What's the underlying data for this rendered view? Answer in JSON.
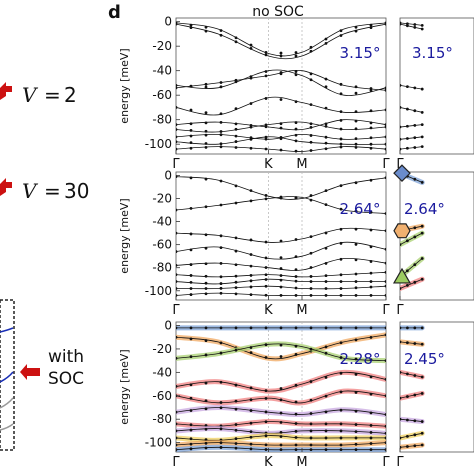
{
  "figure": {
    "panel_letter": "d",
    "column_title": "no SOC",
    "left_column": {
      "potentials": [
        {
          "symbol": "V",
          "op": "=",
          "value": "2"
        },
        {
          "symbol": "V",
          "op": "=",
          "value": "30"
        }
      ],
      "with_soc_label": [
        "with",
        "SOC"
      ],
      "colors": {
        "arrow": "#cc1111",
        "line_blue": "#1a2fb5",
        "line_gray": "#999999"
      }
    },
    "colors": {
      "angle_text": "#1a1a9e",
      "bands": "#111111",
      "blue_band": "#7ea3d8",
      "orange_band": "#f0a860",
      "green_band": "#a8d070",
      "red_band": "#f08080",
      "purple_band": "#c8a8e0",
      "yellow_band": "#f0d060",
      "diamond_marker": "#6a8ccc",
      "hexagon_marker": "#f0b070",
      "triangle_marker": "#9ccc60"
    }
  },
  "chart_data": [
    {
      "type": "line",
      "angle_label": "3.15°",
      "ylabel": "energy  [meV]",
      "x_ticks": [
        "Γ",
        "K",
        "M",
        "Γ"
      ],
      "y_ticks": [
        0,
        -20,
        -40,
        -60,
        -80,
        -100
      ],
      "ylim": [
        -108,
        3
      ],
      "path_positions": [
        0,
        0.44,
        0.6,
        1.0
      ],
      "series_note": "unlabeled moire bands",
      "bands": [
        {
          "x": [
            0,
            0.2,
            0.44,
            0.6,
            0.8,
            1
          ],
          "y": [
            -1,
            -6,
            -26,
            -25,
            -6,
            -1
          ]
        },
        {
          "x": [
            0,
            0.2,
            0.44,
            0.6,
            0.8,
            1
          ],
          "y": [
            -2,
            -10,
            -28,
            -28,
            -10,
            -2
          ]
        },
        {
          "x": [
            0,
            0.2,
            0.44,
            0.6,
            0.8,
            1
          ],
          "y": [
            -52,
            -54,
            -40,
            -44,
            -60,
            -54
          ]
        },
        {
          "x": [
            0,
            0.2,
            0.44,
            0.6,
            0.8,
            1
          ],
          "y": [
            -54,
            -50,
            -44,
            -40,
            -52,
            -56
          ]
        },
        {
          "x": [
            0,
            0.2,
            0.44,
            0.6,
            0.8,
            1
          ],
          "y": [
            -70,
            -76,
            -62,
            -66,
            -74,
            -72
          ]
        },
        {
          "x": [
            0,
            0.2,
            0.44,
            0.6,
            0.8,
            1
          ],
          "y": [
            -84,
            -82,
            -86,
            -88,
            -80,
            -84
          ]
        },
        {
          "x": [
            0,
            0.2,
            0.44,
            0.6,
            0.8,
            1
          ],
          "y": [
            -88,
            -90,
            -84,
            -82,
            -88,
            -86
          ]
        },
        {
          "x": [
            0,
            0.2,
            0.44,
            0.6,
            0.8,
            1
          ],
          "y": [
            -94,
            -92,
            -96,
            -92,
            -96,
            -94
          ]
        },
        {
          "x": [
            0,
            0.2,
            0.44,
            0.6,
            0.8,
            1
          ],
          "y": [
            -98,
            -100,
            -94,
            -98,
            -100,
            -100
          ]
        },
        {
          "x": [
            0,
            0.2,
            0.44,
            0.6,
            0.8,
            1
          ],
          "y": [
            -104,
            -102,
            -104,
            -106,
            -102,
            -104
          ]
        }
      ]
    },
    {
      "type": "line",
      "angle_label": "2.64°",
      "ylabel": "energy  [meV]",
      "x_ticks": [
        "Γ",
        "K",
        "M",
        "Γ"
      ],
      "y_ticks": [
        0,
        -20,
        -40,
        -60,
        -80,
        -100
      ],
      "ylim": [
        -108,
        3
      ],
      "path_positions": [
        0,
        0.44,
        0.6,
        1.0
      ],
      "bands": [
        {
          "x": [
            0,
            0.2,
            0.44,
            0.6,
            0.8,
            1
          ],
          "y": [
            -1,
            -4,
            -18,
            -20,
            -8,
            -2
          ]
        },
        {
          "x": [
            0,
            0.2,
            0.44,
            0.6,
            0.8,
            1
          ],
          "y": [
            -30,
            -26,
            -20,
            -19,
            -30,
            -33
          ]
        },
        {
          "x": [
            0,
            0.2,
            0.44,
            0.6,
            0.8,
            1
          ],
          "y": [
            -50,
            -52,
            -58,
            -55,
            -46,
            -48
          ]
        },
        {
          "x": [
            0,
            0.2,
            0.44,
            0.6,
            0.8,
            1
          ],
          "y": [
            -66,
            -62,
            -72,
            -70,
            -58,
            -64
          ]
        },
        {
          "x": [
            0,
            0.2,
            0.44,
            0.6,
            0.8,
            1
          ],
          "y": [
            -78,
            -76,
            -80,
            -82,
            -72,
            -76
          ]
        },
        {
          "x": [
            0,
            0.2,
            0.44,
            0.6,
            0.8,
            1
          ],
          "y": [
            -86,
            -88,
            -86,
            -88,
            -86,
            -84
          ]
        },
        {
          "x": [
            0,
            0.2,
            0.44,
            0.6,
            0.8,
            1
          ],
          "y": [
            -92,
            -94,
            -90,
            -92,
            -92,
            -92
          ]
        },
        {
          "x": [
            0,
            0.2,
            0.44,
            0.6,
            0.8,
            1
          ],
          "y": [
            -98,
            -98,
            -96,
            -98,
            -98,
            -96
          ]
        },
        {
          "x": [
            0,
            0.2,
            0.44,
            0.6,
            0.8,
            1
          ],
          "y": [
            -104,
            -102,
            -104,
            -104,
            -104,
            -104
          ]
        }
      ]
    },
    {
      "type": "line",
      "angle_label": "2.28°",
      "ylabel": "energy  [meV]",
      "x_ticks": [
        "Γ",
        "K",
        "M",
        "Γ"
      ],
      "y_ticks": [
        0,
        -20,
        -40,
        -60,
        -80,
        -100
      ],
      "ylim": [
        -108,
        3
      ],
      "path_positions": [
        0,
        0.44,
        0.6,
        1.0
      ],
      "bands": [
        {
          "x": [
            0,
            0.2,
            0.44,
            0.6,
            0.8,
            1
          ],
          "y": [
            -2,
            -2,
            -2,
            -2,
            -2,
            -2
          ],
          "color_key": "blue_band"
        },
        {
          "x": [
            0,
            0.2,
            0.44,
            0.6,
            0.8,
            1
          ],
          "y": [
            -10,
            -14,
            -28,
            -24,
            -14,
            -8
          ],
          "color_key": "orange_band"
        },
        {
          "x": [
            0,
            0.2,
            0.44,
            0.6,
            0.8,
            1
          ],
          "y": [
            -28,
            -24,
            -16,
            -18,
            -28,
            -30
          ],
          "color_key": "green_band"
        },
        {
          "x": [
            0,
            0.2,
            0.44,
            0.6,
            0.8,
            1
          ],
          "y": [
            -52,
            -48,
            -56,
            -50,
            -40,
            -46
          ],
          "color_key": "red_band"
        },
        {
          "x": [
            0,
            0.2,
            0.44,
            0.6,
            0.8,
            1
          ],
          "y": [
            -60,
            -66,
            -62,
            -66,
            -56,
            -60
          ],
          "color_key": "red_band"
        },
        {
          "x": [
            0,
            0.2,
            0.44,
            0.6,
            0.8,
            1
          ],
          "y": [
            -74,
            -70,
            -74,
            -76,
            -72,
            -76
          ],
          "color_key": "purple_band"
        },
        {
          "x": [
            0,
            0.2,
            0.44,
            0.6,
            0.8,
            1
          ],
          "y": [
            -84,
            -86,
            -82,
            -84,
            -84,
            -86
          ],
          "color_key": "red_band"
        },
        {
          "x": [
            0,
            0.2,
            0.44,
            0.6,
            0.8,
            1
          ],
          "y": [
            -90,
            -88,
            -92,
            -90,
            -90,
            -92
          ],
          "color_key": "purple_band"
        },
        {
          "x": [
            0,
            0.2,
            0.44,
            0.6,
            0.8,
            1
          ],
          "y": [
            -96,
            -98,
            -94,
            -96,
            -96,
            -96
          ],
          "color_key": "yellow_band"
        },
        {
          "x": [
            0,
            0.2,
            0.44,
            0.6,
            0.8,
            1
          ],
          "y": [
            -102,
            -100,
            -102,
            -102,
            -102,
            -100
          ],
          "color_key": "orange_band"
        },
        {
          "x": [
            0,
            0.2,
            0.44,
            0.6,
            0.8,
            1
          ],
          "y": [
            -106,
            -104,
            -106,
            -106,
            -106,
            -106
          ],
          "color_key": "blue_band"
        }
      ]
    },
    {
      "type": "line",
      "angle_label": "3.15°",
      "partial": true,
      "x_ticks": [
        "Γ"
      ],
      "bands": [
        {
          "x": [
            0,
            0.3
          ],
          "y": [
            -1,
            -3
          ]
        },
        {
          "x": [
            0,
            0.3
          ],
          "y": [
            -2,
            -6
          ]
        },
        {
          "x": [
            0,
            0.3
          ],
          "y": [
            -52,
            -55
          ]
        },
        {
          "x": [
            0,
            0.3
          ],
          "y": [
            -70,
            -74
          ]
        },
        {
          "x": [
            0,
            0.3
          ],
          "y": [
            -86,
            -84
          ]
        },
        {
          "x": [
            0,
            0.3
          ],
          "y": [
            -96,
            -94
          ]
        },
        {
          "x": [
            0,
            0.3
          ],
          "y": [
            -104,
            -102
          ]
        }
      ]
    },
    {
      "type": "line",
      "angle_label": "2.64°",
      "partial": true,
      "x_ticks": [
        "Γ"
      ],
      "markers": [
        {
          "shape": "diamond",
          "energy": 2
        },
        {
          "shape": "hexagon",
          "energy": -48
        },
        {
          "shape": "triangle",
          "energy": -88
        }
      ],
      "bands": [
        {
          "x": [
            0,
            0.3
          ],
          "y": [
            2,
            -6
          ],
          "color_key": "blue_band"
        },
        {
          "x": [
            0,
            0.3
          ],
          "y": [
            -48,
            -44
          ],
          "color_key": "orange_band"
        },
        {
          "x": [
            0,
            0.3
          ],
          "y": [
            -60,
            -50
          ],
          "color_key": "green_band"
        },
        {
          "x": [
            0,
            0.3
          ],
          "y": [
            -88,
            -72
          ],
          "color_key": "green_band"
        },
        {
          "x": [
            0,
            0.3
          ],
          "y": [
            -98,
            -90
          ],
          "color_key": "red_band"
        }
      ]
    },
    {
      "type": "line",
      "angle_label": "2.45°",
      "partial": true,
      "x_ticks": [
        "Γ"
      ],
      "bands": [
        {
          "x": [
            0,
            0.3
          ],
          "y": [
            -2,
            -2
          ],
          "color_key": "blue_band"
        },
        {
          "x": [
            0,
            0.3
          ],
          "y": [
            -14,
            -16
          ],
          "color_key": "orange_band"
        },
        {
          "x": [
            0,
            0.3
          ],
          "y": [
            -40,
            -44
          ],
          "color_key": "red_band"
        },
        {
          "x": [
            0,
            0.3
          ],
          "y": [
            -62,
            -58
          ],
          "color_key": "red_band"
        },
        {
          "x": [
            0,
            0.3
          ],
          "y": [
            -80,
            -82
          ],
          "color_key": "purple_band"
        },
        {
          "x": [
            0,
            0.3
          ],
          "y": [
            -96,
            -92
          ],
          "color_key": "yellow_band"
        },
        {
          "x": [
            0,
            0.3
          ],
          "y": [
            -104,
            -102
          ],
          "color_key": "orange_band"
        }
      ]
    }
  ]
}
